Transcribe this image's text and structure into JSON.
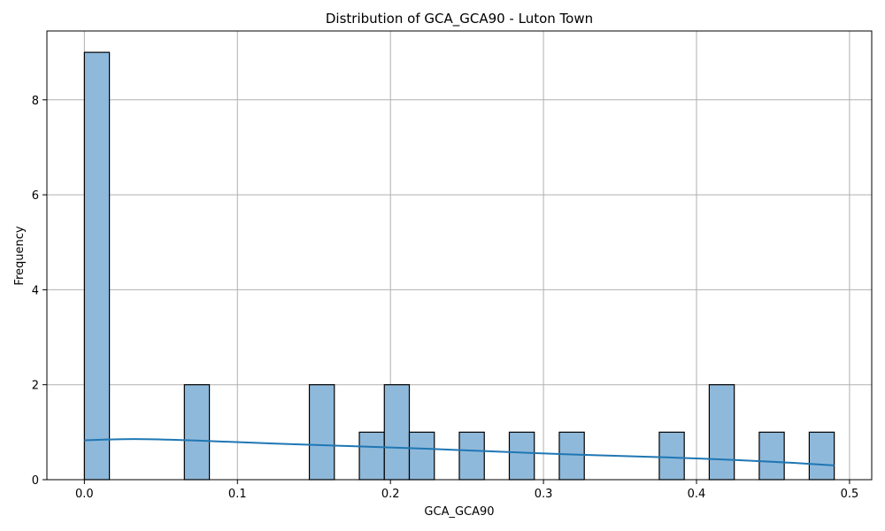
{
  "chart_data": {
    "type": "bar",
    "title": "Distribution of GCA_GCA90 - Luton Town",
    "xlabel": "GCA_GCA90",
    "ylabel": "Frequency",
    "xlim": [
      -0.0245,
      0.5145
    ],
    "ylim": [
      0,
      9.45
    ],
    "xticks": [
      0.0,
      0.1,
      0.2,
      0.3,
      0.4,
      0.5
    ],
    "xtick_labels": [
      "0.0",
      "0.1",
      "0.2",
      "0.3",
      "0.4",
      "0.5"
    ],
    "yticks": [
      0,
      2,
      4,
      6,
      8
    ],
    "ytick_labels": [
      "0",
      "2",
      "4",
      "6",
      "8"
    ],
    "grid": true,
    "bin_width": 0.01633,
    "bins": [
      {
        "start": 0.0,
        "end": 0.01633,
        "count": 9
      },
      {
        "start": 0.06533,
        "end": 0.08167,
        "count": 2
      },
      {
        "start": 0.147,
        "end": 0.16333,
        "count": 2
      },
      {
        "start": 0.17967,
        "end": 0.196,
        "count": 1
      },
      {
        "start": 0.196,
        "end": 0.21233,
        "count": 2
      },
      {
        "start": 0.21233,
        "end": 0.22867,
        "count": 1
      },
      {
        "start": 0.245,
        "end": 0.26133,
        "count": 1
      },
      {
        "start": 0.27767,
        "end": 0.294,
        "count": 1
      },
      {
        "start": 0.31033,
        "end": 0.32667,
        "count": 1
      },
      {
        "start": 0.37567,
        "end": 0.392,
        "count": 1
      },
      {
        "start": 0.40833,
        "end": 0.42467,
        "count": 2
      },
      {
        "start": 0.441,
        "end": 0.45733,
        "count": 1
      },
      {
        "start": 0.47367,
        "end": 0.49,
        "count": 1
      }
    ],
    "kde": {
      "x": [
        0.0,
        0.03,
        0.06,
        0.1,
        0.15,
        0.2,
        0.25,
        0.3,
        0.35,
        0.4,
        0.45,
        0.49
      ],
      "y": [
        0.83,
        0.86,
        0.84,
        0.79,
        0.73,
        0.68,
        0.62,
        0.55,
        0.5,
        0.45,
        0.38,
        0.3
      ]
    },
    "colors": {
      "bar": "#8fb9db",
      "bar_edge": "#000000",
      "kde": "#1f77b4"
    }
  }
}
